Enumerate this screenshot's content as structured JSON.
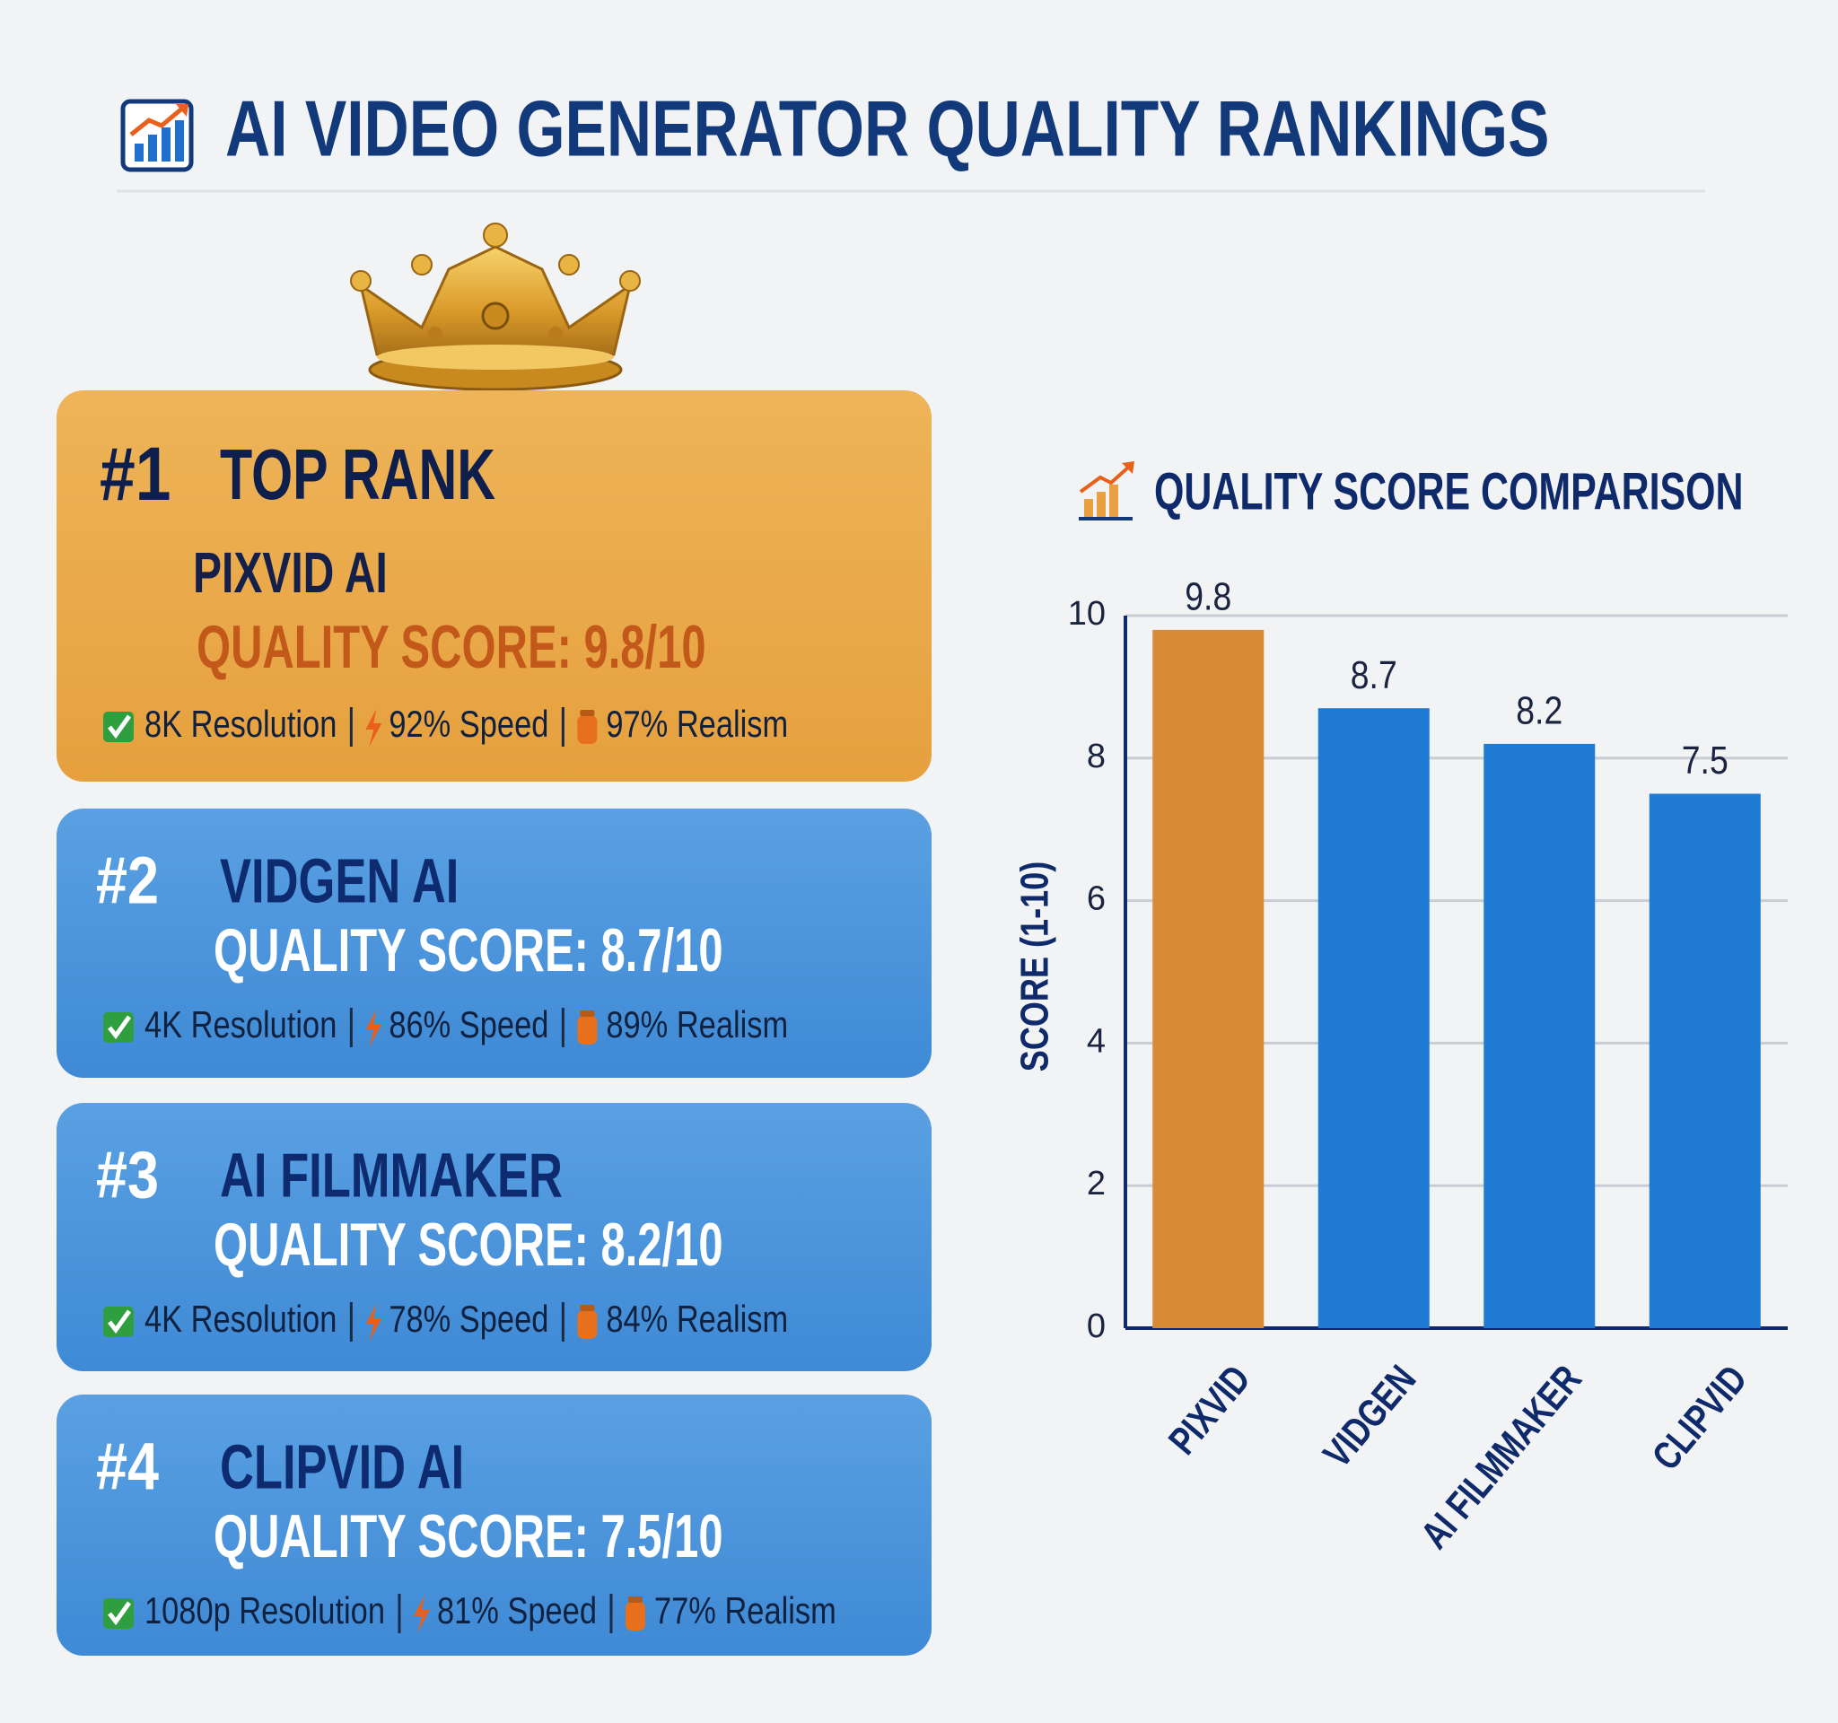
{
  "header": {
    "title": "AI VIDEO GENERATOR QUALITY RANKINGS"
  },
  "rankings": [
    {
      "rank": "#1",
      "label": "TOP RANK",
      "name": "PIXVID AI",
      "score": "QUALITY SCORE: 9.8/10",
      "features": [
        "8K Resolution",
        "92% Speed",
        "97% Realism"
      ]
    },
    {
      "rank": "#2",
      "name": "VIDGEN AI",
      "score": "QUALITY SCORE: 8.7/10",
      "features": [
        "4K Resolution",
        "86% Speed",
        "89% Realism"
      ]
    },
    {
      "rank": "#3",
      "name": "AI FILMMAKER",
      "score": "QUALITY SCORE: 8.2/10",
      "features": [
        "4K Resolution",
        "78% Speed",
        "84% Realism"
      ]
    },
    {
      "rank": "#4",
      "name": "CLIPVID AI",
      "score": "QUALITY SCORE: 7.5/10",
      "features": [
        "1080p Resolution",
        "81% Speed",
        "77% Realism"
      ]
    }
  ],
  "chart_data": {
    "type": "bar",
    "title": "QUALITY SCORE COMPARISON",
    "y_label": "SCORE (1-10)",
    "categories": [
      "PIXVID",
      "VIDGEN",
      "AI FILMMAKER",
      "CLIPVID"
    ],
    "values": [
      9.8,
      8.7,
      8.2,
      7.5
    ],
    "colors": [
      "#d98b35",
      "#1f7bd3",
      "#1f7bd3",
      "#1f7bd3"
    ],
    "ylim": [
      0,
      10
    ],
    "yticks": [
      0,
      2,
      4,
      6,
      8,
      10
    ],
    "grid": true
  }
}
